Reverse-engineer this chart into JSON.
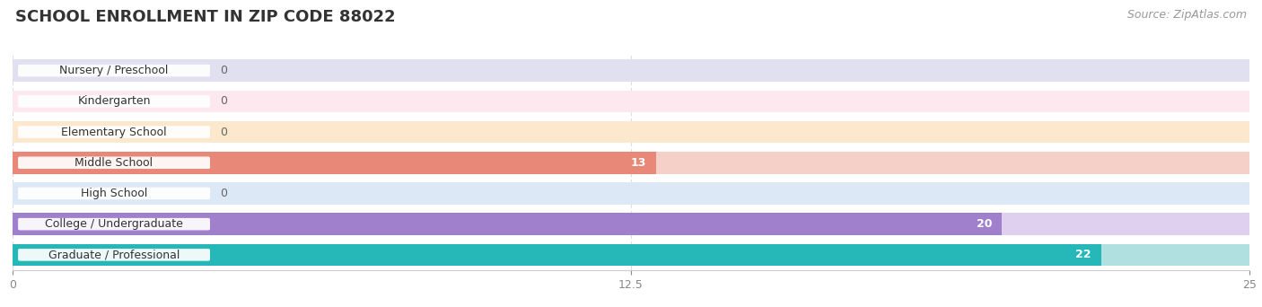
{
  "title": "SCHOOL ENROLLMENT IN ZIP CODE 88022",
  "source": "Source: ZipAtlas.com",
  "categories": [
    "Nursery / Preschool",
    "Kindergarten",
    "Elementary School",
    "Middle School",
    "High School",
    "College / Undergraduate",
    "Graduate / Professional"
  ],
  "values": [
    0,
    0,
    0,
    13,
    0,
    20,
    22
  ],
  "bar_colors": [
    "#b0b0e0",
    "#f4a0b8",
    "#f5c89a",
    "#e88878",
    "#b8cce8",
    "#a080cc",
    "#26b8b8"
  ],
  "bar_bg_colors": [
    "#e0e0f0",
    "#fce8ee",
    "#fce8cc",
    "#f5d0c8",
    "#dce8f5",
    "#e0d0f0",
    "#b0e0e0"
  ],
  "xlim": [
    0,
    25
  ],
  "xticks": [
    0,
    12.5,
    25
  ],
  "background_color": "#ffffff",
  "title_fontsize": 13,
  "source_fontsize": 9,
  "label_fontsize": 9,
  "value_fontsize": 9
}
